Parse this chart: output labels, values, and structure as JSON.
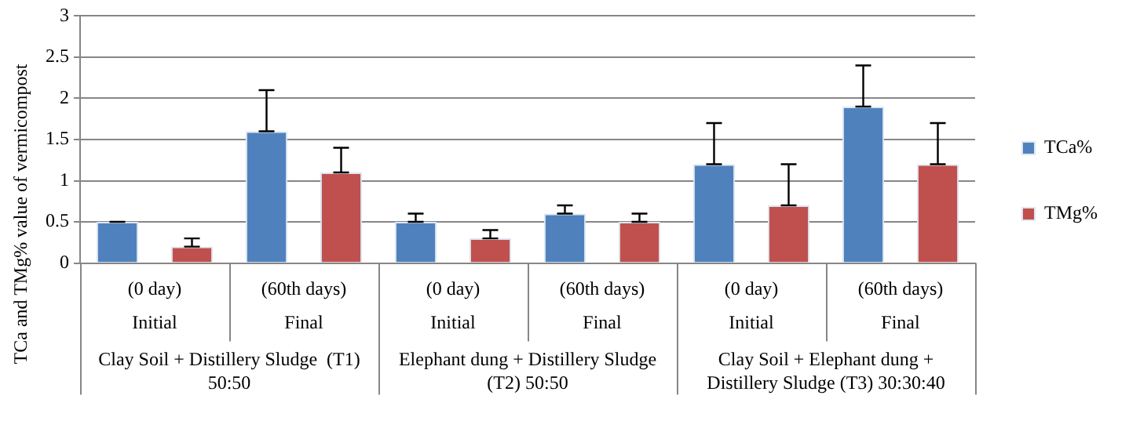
{
  "chart_data": {
    "type": "bar",
    "ylabel": "TCa and TMg% value of vermicompost",
    "categories": [
      "(0 day)\nInitial",
      "(60th days)\nFinal",
      "(0 day)\nInitial",
      "(60th days)\nFinal",
      "(0 day)\nInitial",
      "(60th days)\nFinal"
    ],
    "series": [
      {
        "name": "TCa%",
        "color": "#4f81bd",
        "values": [
          0.5,
          1.6,
          0.5,
          0.6,
          1.2,
          1.9
        ],
        "errors": [
          [
            0.5,
            0.5
          ],
          [
            1.6,
            2.1
          ],
          [
            0.5,
            0.6
          ],
          [
            0.6,
            0.7
          ],
          [
            1.2,
            1.7
          ],
          [
            1.9,
            2.4
          ]
        ]
      },
      {
        "name": "TMg%",
        "color": "#c0504d",
        "values": [
          0.2,
          1.1,
          0.3,
          0.5,
          0.7,
          1.2
        ],
        "errors": [
          [
            0.2,
            0.3
          ],
          [
            1.1,
            1.4
          ],
          [
            0.3,
            0.4
          ],
          [
            0.5,
            0.6
          ],
          [
            0.7,
            1.2
          ],
          [
            1.2,
            1.7
          ]
        ]
      }
    ],
    "annotations": [
      "Clay Soil + Distillery Sludge  (T1) 50:50",
      "Elephant dung + Distillery Sludge (T2) 50:50",
      "Clay Soil + Elephant dung + Distillery Sludge (T3) 30:30:40"
    ],
    "ylim": [
      0,
      3
    ],
    "yticks": [
      0,
      0.5,
      1,
      1.5,
      2,
      2.5,
      3
    ],
    "grid": "y",
    "legend": "right"
  }
}
